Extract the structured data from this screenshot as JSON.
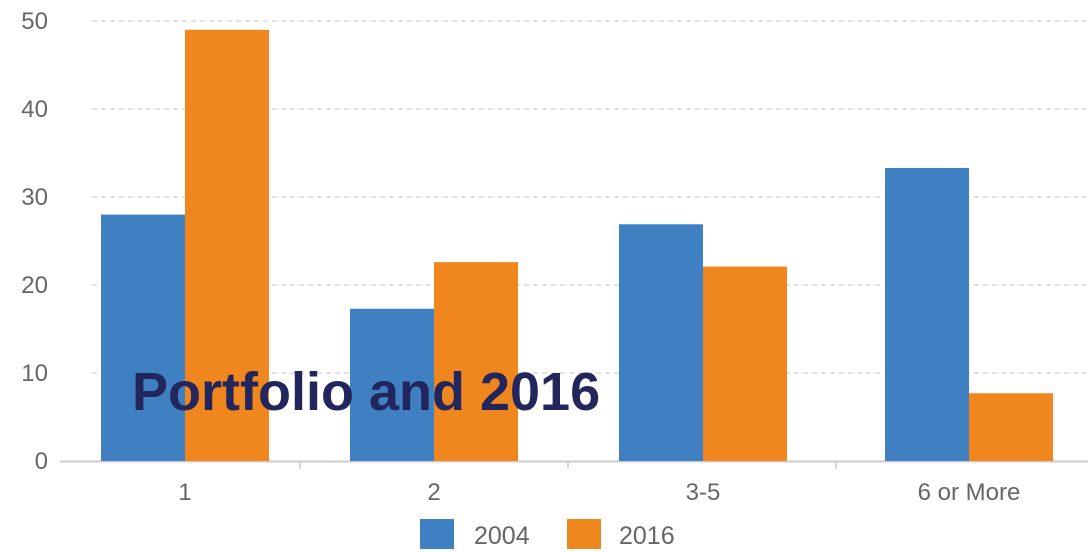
{
  "overlay_text": "Portfolio and 2016",
  "colors": {
    "series_2004": "#3f80c2",
    "series_2016": "#ef861e",
    "grid": "#d9d9d9",
    "axis": "#cccccc",
    "tick_text": "#666666",
    "overlay_text": "#23255d"
  },
  "chart_data": {
    "type": "bar",
    "categories": [
      "1",
      "2",
      "3-5",
      "6 or More"
    ],
    "series": [
      {
        "name": "2004",
        "values": [
          28,
          17.3,
          26.9,
          33.3
        ]
      },
      {
        "name": "2016",
        "values": [
          49,
          22.6,
          22.1,
          7.7
        ]
      }
    ],
    "y_ticks": [
      "0",
      "10",
      "20",
      "30",
      "40",
      "50"
    ],
    "ylim": [
      0,
      50
    ],
    "grid": true,
    "legend_position": "bottom-center",
    "title": "",
    "xlabel": "",
    "ylabel": ""
  }
}
